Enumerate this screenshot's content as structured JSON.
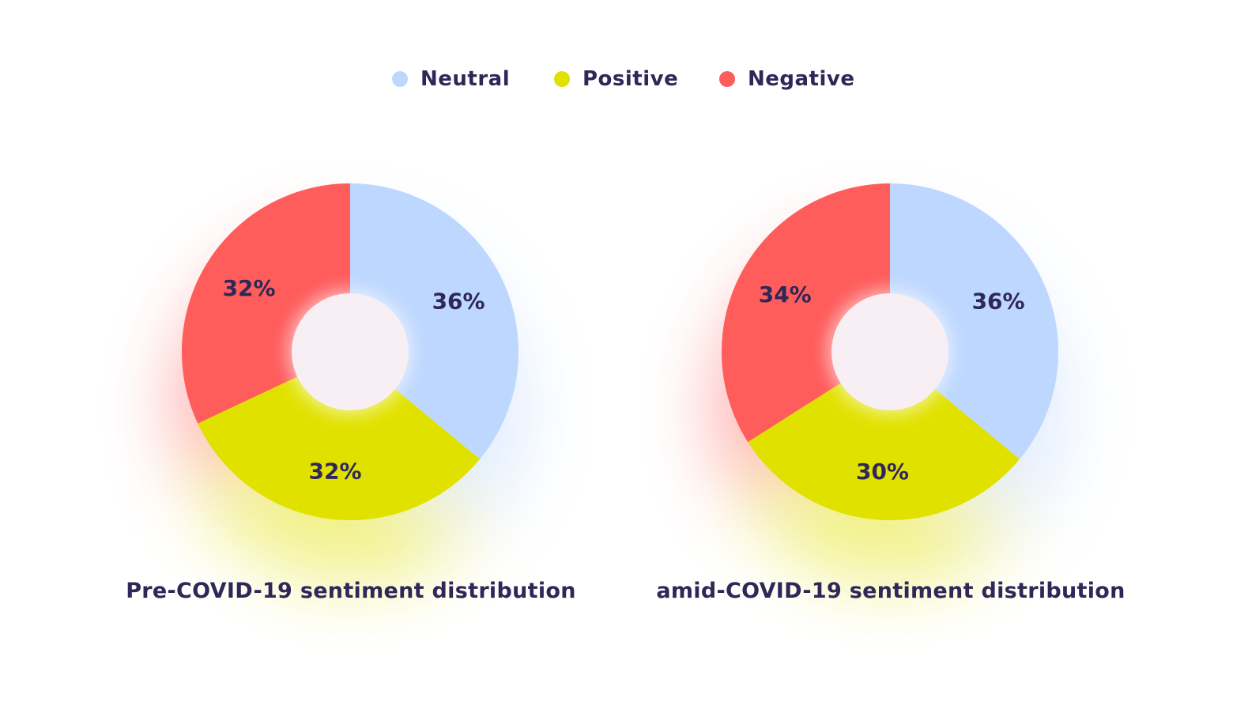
{
  "legend": {
    "items": [
      {
        "label": "Neutral",
        "color": "#bdd7ff"
      },
      {
        "label": "Positive",
        "color": "#e1e100"
      },
      {
        "label": "Negative",
        "color": "#ff5c5c"
      }
    ]
  },
  "chart_data": [
    {
      "type": "pie",
      "title": "Pre-COVID-19 sentiment distribution",
      "donut": true,
      "slices": [
        {
          "name": "Neutral",
          "value": 36,
          "label": "36%",
          "color": "#bdd7ff"
        },
        {
          "name": "Positive",
          "value": 32,
          "label": "32%",
          "color": "#e1e100"
        },
        {
          "name": "Negative",
          "value": 32,
          "label": "32%",
          "color": "#ff5c5c"
        }
      ],
      "legend_position": "top-center"
    },
    {
      "type": "pie",
      "title": "amid-COVID-19 sentiment distribution",
      "donut": true,
      "slices": [
        {
          "name": "Neutral",
          "value": 36,
          "label": "36%",
          "color": "#bdd7ff"
        },
        {
          "name": "Positive",
          "value": 30,
          "label": "30%",
          "color": "#e1e100"
        },
        {
          "name": "Negative",
          "value": 34,
          "label": "34%",
          "color": "#ff5c5c"
        }
      ],
      "legend_position": "top-center"
    }
  ]
}
